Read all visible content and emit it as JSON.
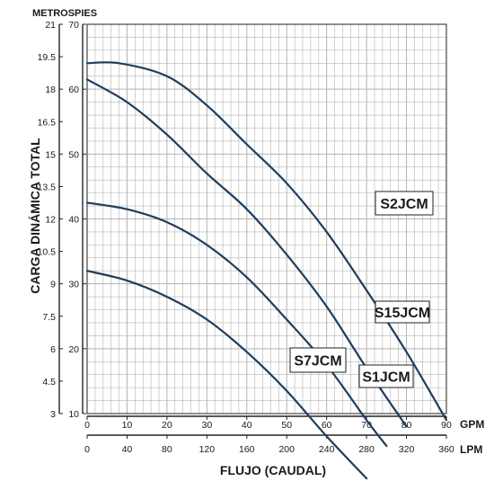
{
  "chart_data": {
    "type": "line",
    "title": "",
    "ylabel": "CARGA DINÁMICA TOTAL",
    "xlabel": "FLUJO (CAUDAL)",
    "y_axis_left_unit": "METROS",
    "y_axis_right_unit": "PIES",
    "x_axis_top_unit": "GPM",
    "x_axis_bottom_unit": "LPM",
    "xlim": [
      0,
      90
    ],
    "ylim_feet": [
      10,
      70
    ],
    "grid": true,
    "colors": {
      "curve": "#1e3d5c",
      "grid": "#b3b3b3",
      "axis": "#222222",
      "text": "#1a1a1a"
    },
    "ticks": {
      "gpm": [
        "0",
        "10",
        "20",
        "30",
        "40",
        "50",
        "60",
        "70",
        "80",
        "90"
      ],
      "lpm": [
        "0",
        "40",
        "80",
        "120",
        "160",
        "200",
        "240",
        "280",
        "320",
        "360"
      ],
      "feet": [
        "10",
        "20",
        "30",
        "40",
        "50",
        "60",
        "70"
      ],
      "metros": [
        "3",
        "4.5",
        "6",
        "7.5",
        "9",
        "10.5",
        "12",
        "13.5",
        "15",
        "16.5",
        "18",
        "19.5",
        "21"
      ]
    },
    "series": [
      {
        "name": "S2JCM",
        "x": [
          0,
          8,
          20,
          30,
          40,
          50,
          60,
          70,
          80,
          90
        ],
        "y": [
          64,
          64,
          62,
          57.5,
          51.5,
          45.5,
          38,
          29,
          19.5,
          9
        ]
      },
      {
        "name": "S15JCM",
        "x": [
          0,
          10,
          20,
          30,
          40,
          50,
          60,
          70,
          80
        ],
        "y": [
          61.5,
          58,
          53,
          47,
          41.5,
          34.5,
          26.5,
          17,
          8
        ]
      },
      {
        "name": "S7JCM",
        "x": [
          0,
          10,
          20,
          30,
          40,
          50,
          60,
          70,
          75
        ],
        "y": [
          42.5,
          41.5,
          39.5,
          36,
          31,
          24.5,
          17.5,
          9,
          5
        ]
      },
      {
        "name": "S1JCM",
        "x": [
          0,
          10,
          20,
          30,
          40,
          50,
          60,
          70
        ],
        "y": [
          32,
          30.5,
          28,
          24.5,
          19.5,
          13.5,
          6.5,
          0
        ]
      }
    ]
  }
}
